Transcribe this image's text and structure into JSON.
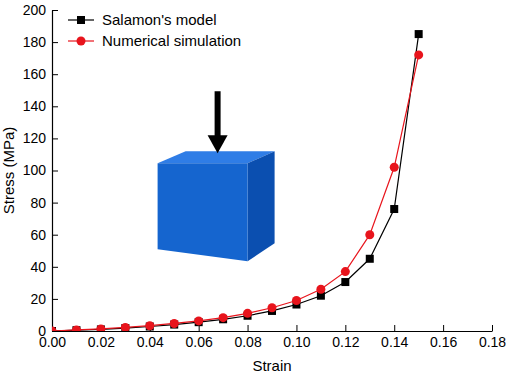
{
  "chart_data": {
    "type": "line",
    "x_label": "Strain",
    "y_label": "Stress (MPa)",
    "x": [
      0,
      0.01,
      0.02,
      0.03,
      0.04,
      0.05,
      0.06,
      0.07,
      0.08,
      0.09,
      0.1,
      0.11,
      0.12,
      0.13,
      0.14,
      0.15
    ],
    "series": [
      {
        "name": "Salamon's model",
        "color": "#000000",
        "marker": "square",
        "line_style": "solid",
        "values": [
          0,
          0.5,
          1,
          1.8,
          2.8,
          4,
          5.5,
          7.3,
          9.5,
          12.5,
          16.5,
          22,
          30.5,
          45,
          76,
          185
        ]
      },
      {
        "name": "Numerical simulation",
        "color": "#e8141c",
        "marker": "circle",
        "line_style": "solid",
        "values": [
          0,
          0.7,
          1.3,
          2.2,
          3.3,
          4.7,
          6.3,
          8.3,
          11,
          14.5,
          19,
          26,
          37,
          60,
          102,
          172
        ]
      }
    ],
    "xlim": [
      0,
      0.18
    ],
    "xticks": [
      {
        "value": 0,
        "label": "0.00"
      },
      {
        "value": 0.02,
        "label": "0.02"
      },
      {
        "value": 0.04,
        "label": "0.04"
      },
      {
        "value": 0.06,
        "label": "0.06"
      },
      {
        "value": 0.08,
        "label": "0.08"
      },
      {
        "value": 0.1,
        "label": "0.10"
      },
      {
        "value": 0.12,
        "label": "0.12"
      },
      {
        "value": 0.14,
        "label": "0.14"
      },
      {
        "value": 0.16,
        "label": "0.16"
      },
      {
        "value": 0.18,
        "label": "0.18"
      }
    ],
    "ylim": [
      0,
      200
    ],
    "yticks": [
      0,
      20,
      40,
      60,
      80,
      100,
      120,
      140,
      160,
      180,
      200
    ],
    "grid": false,
    "legend": "upper left"
  }
}
